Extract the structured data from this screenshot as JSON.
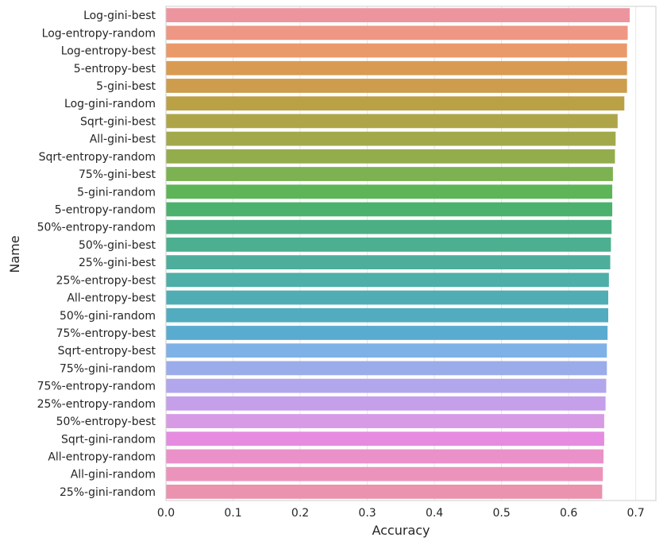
{
  "chart_data": {
    "type": "bar",
    "orientation": "horizontal",
    "xlabel": "Accuracy",
    "ylabel": "Name",
    "xlim": [
      0.0,
      0.73
    ],
    "xticks": [
      0.0,
      0.1,
      0.2,
      0.3,
      0.4,
      0.5,
      0.6,
      0.7
    ],
    "xtick_labels": [
      "0.0",
      "0.1",
      "0.2",
      "0.3",
      "0.4",
      "0.5",
      "0.6",
      "0.7"
    ],
    "grid": "vertical",
    "categories": [
      "Log-gini-best",
      "Log-entropy-random",
      "Log-entropy-best",
      "5-entropy-best",
      "5-gini-best",
      "Log-gini-random",
      "Sqrt-gini-best",
      "All-gini-best",
      "Sqrt-entropy-random",
      "75%-gini-best",
      "5-gini-random",
      "5-entropy-random",
      "50%-entropy-random",
      "50%-gini-best",
      "25%-gini-best",
      "25%-entropy-best",
      "All-entropy-best",
      "50%-gini-random",
      "75%-entropy-best",
      "Sqrt-entropy-best",
      "75%-gini-random",
      "75%-entropy-random",
      "25%-entropy-random",
      "50%-entropy-best",
      "Sqrt-gini-random",
      "All-entropy-random",
      "All-gini-random",
      "25%-gini-random"
    ],
    "values": [
      0.691,
      0.688,
      0.687,
      0.687,
      0.687,
      0.683,
      0.673,
      0.67,
      0.669,
      0.666,
      0.665,
      0.665,
      0.664,
      0.663,
      0.662,
      0.66,
      0.659,
      0.659,
      0.658,
      0.657,
      0.657,
      0.656,
      0.655,
      0.653,
      0.653,
      0.652,
      0.651,
      0.65
    ],
    "colors": [
      "#ec959e",
      "#ee9784",
      "#e9996a",
      "#d99a52",
      "#cd9c4d",
      "#bba146",
      "#aea548",
      "#a2a94b",
      "#93ad4d",
      "#7cb251",
      "#5db557",
      "#4bb16d",
      "#4caf83",
      "#4caf8f",
      "#4dae9c",
      "#4eaea8",
      "#50adb3",
      "#52acbf",
      "#5aabd0",
      "#7eb1e6",
      "#9bacea",
      "#b2a6ec",
      "#c59fea",
      "#d79be6",
      "#e58ce0",
      "#ea91c9",
      "#ec93bb",
      "#ea92ae"
    ]
  }
}
